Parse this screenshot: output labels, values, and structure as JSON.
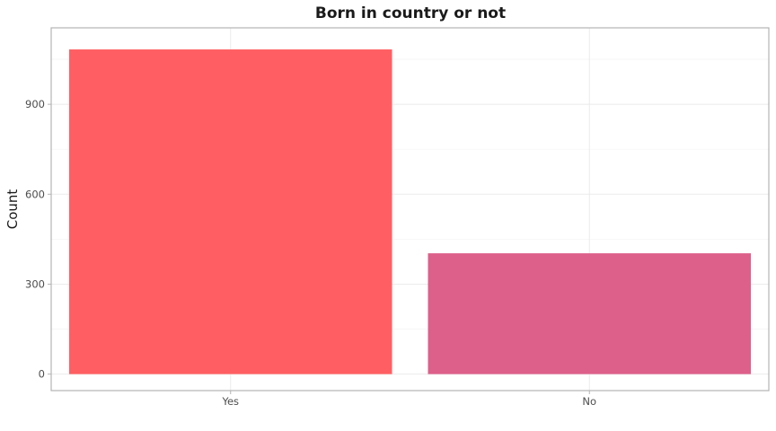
{
  "chart_data": {
    "type": "bar",
    "title": "Born in country or not",
    "xlabel": "",
    "ylabel": "Count",
    "categories": [
      "Yes",
      "No"
    ],
    "values": [
      1083,
      403
    ],
    "colors": [
      "#FF5F63",
      "#DD608A"
    ],
    "ylim": [
      -55,
      1155
    ],
    "yticks": [
      0,
      300,
      600,
      900
    ],
    "grid": true,
    "legend": "none"
  }
}
